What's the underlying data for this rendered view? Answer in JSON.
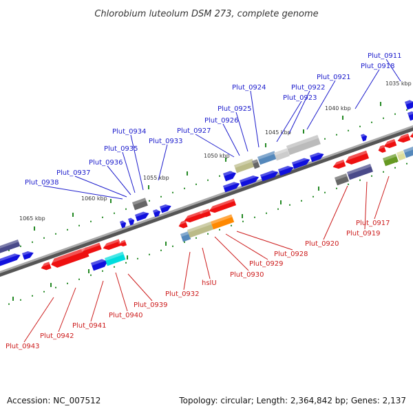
{
  "title": "Chlorobium luteolum DSM 273, complete genome",
  "accession": "Accession: NC_007512",
  "topology": "Topology: circular; Length: 2,364,842 bp; Genes: 2,137",
  "colors": {
    "forward_label": "#1a1acc",
    "reverse_label": "#cc1a1a",
    "forward_gene": "#1010dd",
    "reverse_gene": "#ee1010",
    "backbone": "#888888",
    "tick": "#228822"
  },
  "kbp_labels": [
    "1035 kbp",
    "1040 kbp",
    "1045 kbp",
    "1050 kbp",
    "1055 kbp",
    "1060 kbp",
    "1065 kbp"
  ],
  "forward_genes": [
    "Plut_0911",
    "Plut_0918",
    "Plut_0921",
    "Plut_0922",
    "Plut_0923",
    "Plut_0924",
    "Plut_0925",
    "Plut_0926",
    "Plut_0927",
    "Plut_0933",
    "Plut_0934",
    "Plut_0935",
    "Plut_0936",
    "Plut_0937",
    "Plut_0938"
  ],
  "reverse_genes": [
    "Plut_0917",
    "Plut_0919",
    "Plut_0920",
    "Plut_0928",
    "Plut_0929",
    "Plut_0930",
    "hslU",
    "Plut_0932",
    "Plut_0939",
    "Plut_0940",
    "Plut_0941",
    "Plut_0942",
    "Plut_0943"
  ]
}
